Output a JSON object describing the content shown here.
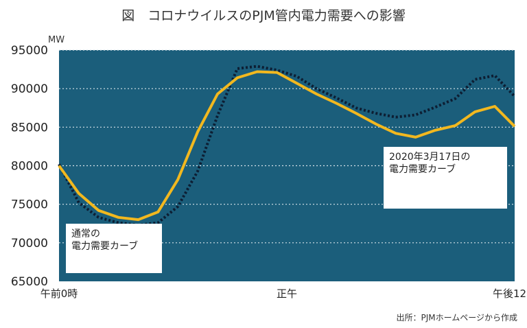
{
  "title": "図　コロナウイルスのPJM管内電力需要への影響",
  "source": "出所：PJMホームページから作成",
  "colors": {
    "plot_bg": "#1b5e7b",
    "grid": "#d8e4ea",
    "normal_line": "#0d1e33",
    "covid_line": "#f2b81f"
  },
  "callouts": {
    "normal": "通常の\n電力需要カーブ",
    "covid": "2020年3月17日の\n電力需要カーブ"
  },
  "chart_data": {
    "type": "line",
    "ylabel": "MW",
    "ylim": [
      65000,
      95000
    ],
    "yticks": [
      95000,
      90000,
      85000,
      80000,
      75000,
      70000,
      65000
    ],
    "xlim": [
      0,
      23
    ],
    "xticks": [
      {
        "x": 0,
        "label": "午前0時"
      },
      {
        "x": 11.5,
        "label": "正午"
      },
      {
        "x": 23,
        "label": "午後12時"
      }
    ],
    "grid": true,
    "series": [
      {
        "name": "通常の電力需要カーブ",
        "style": "dotted",
        "x": [
          0,
          1,
          2,
          3,
          4,
          5,
          6,
          7,
          8,
          9,
          10,
          11,
          12,
          13,
          14,
          15,
          16,
          17,
          18,
          19,
          20,
          21,
          22,
          23
        ],
        "values": [
          80200,
          75200,
          73300,
          72600,
          72300,
          72600,
          74700,
          79300,
          86500,
          92600,
          92900,
          92400,
          91600,
          90000,
          88800,
          87500,
          86800,
          86300,
          86600,
          87600,
          88700,
          91200,
          91700,
          89000
        ]
      },
      {
        "name": "2020年3月17日の電力需要カーブ",
        "style": "solid",
        "x": [
          0,
          1,
          2,
          3,
          4,
          5,
          6,
          7,
          8,
          9,
          10,
          11,
          12,
          13,
          14,
          15,
          16,
          17,
          18,
          19,
          20,
          21,
          22,
          23
        ],
        "values": [
          80000,
          76400,
          74200,
          73300,
          73000,
          74000,
          78200,
          84400,
          89300,
          91400,
          92200,
          92100,
          90700,
          89300,
          88100,
          86800,
          85400,
          84200,
          83700,
          84600,
          85200,
          87000,
          87700,
          85100
        ]
      }
    ]
  }
}
